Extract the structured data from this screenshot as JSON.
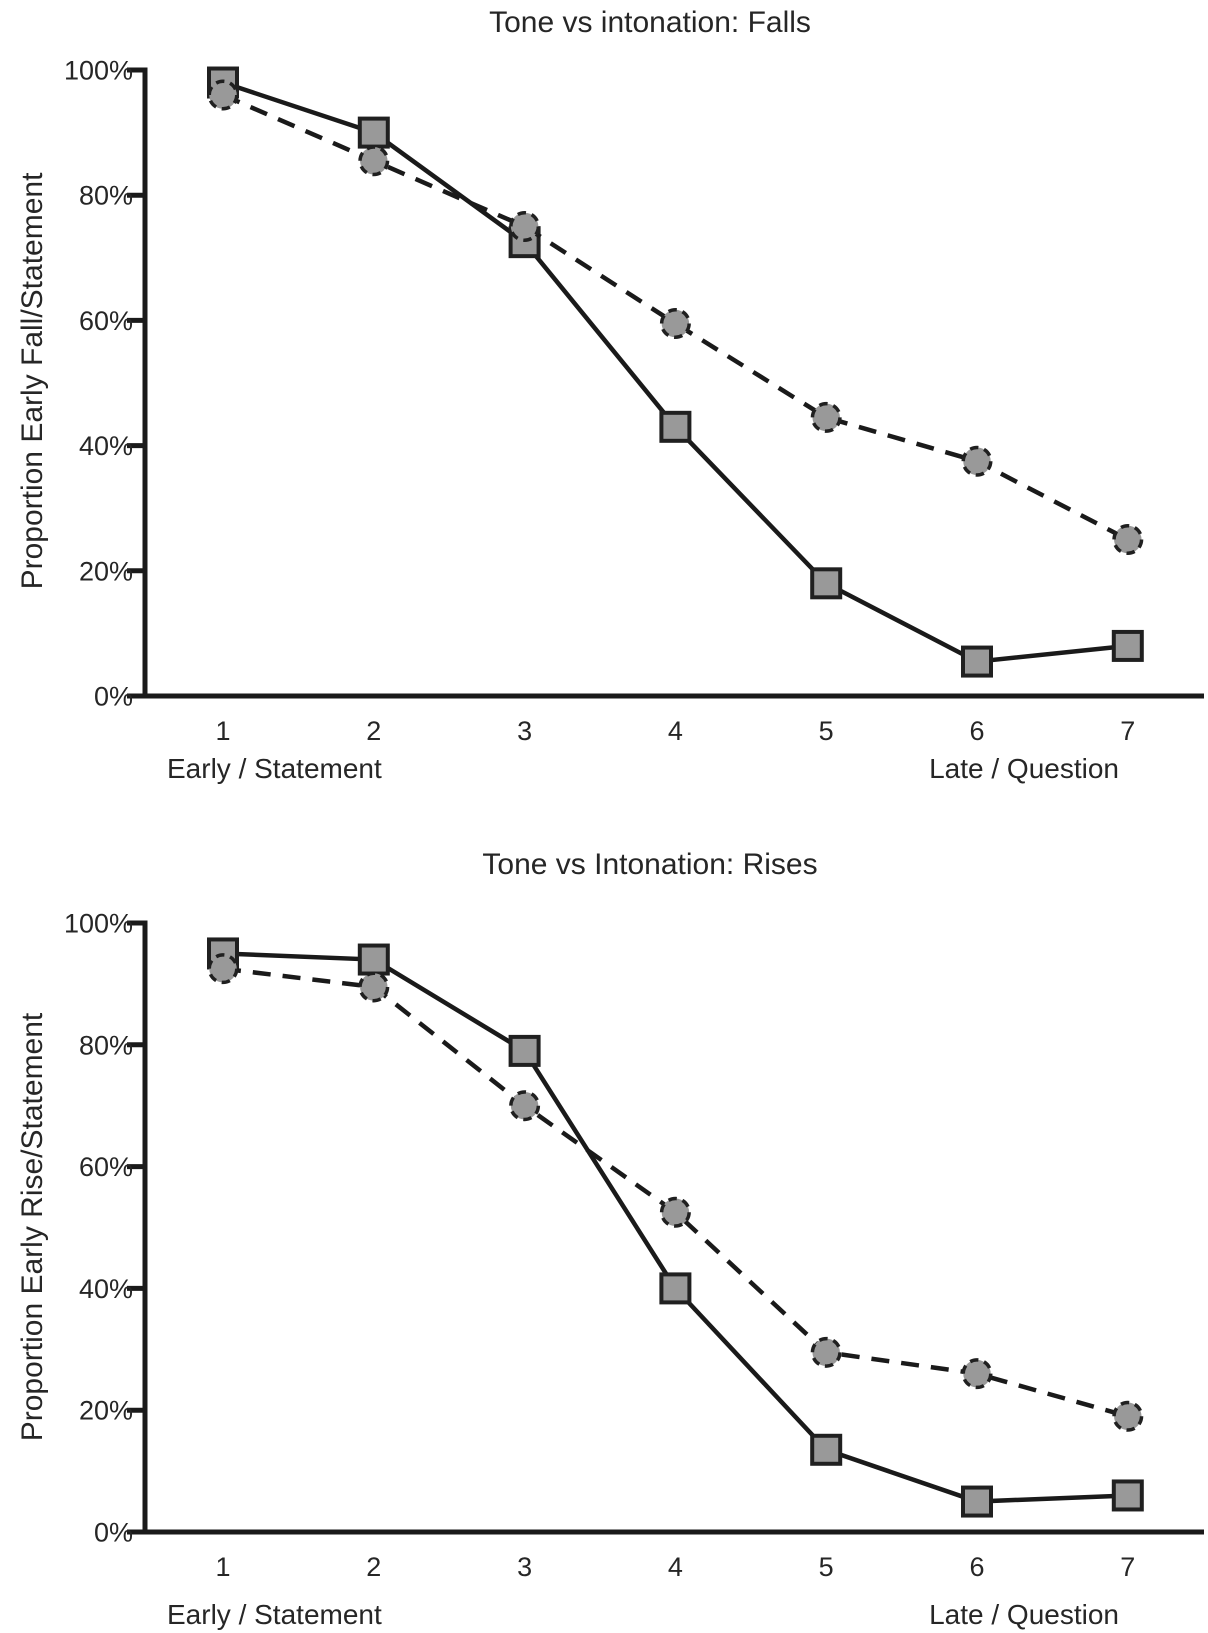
{
  "colors": {
    "axis": "#1a1a1a",
    "line": "#1a1a1a",
    "marker_fill": "#999999",
    "marker_stroke": "#202020",
    "text": "#262626"
  },
  "chart_data": [
    {
      "type": "line",
      "title": "Tone vs intonation: Falls",
      "ylabel": "Proportion Early Fall/Statement",
      "xlabel_left": "Early / Statement",
      "xlabel_right": "Late / Question",
      "x": [
        1,
        2,
        3,
        4,
        5,
        6,
        7
      ],
      "x_tick_labels": [
        "1",
        "2",
        "3",
        "4",
        "5",
        "6",
        "7"
      ],
      "y_tick_values": [
        0,
        20,
        40,
        60,
        80,
        100
      ],
      "y_tick_labels": [
        "0%",
        "20%",
        "40%",
        "60%",
        "80%",
        "100%"
      ],
      "ylim": [
        0,
        100
      ],
      "grid": false,
      "legend": "none",
      "series": [
        {
          "name": "solid-squares",
          "marker": "square",
          "line_style": "solid",
          "values": [
            98,
            90,
            72.5,
            43,
            18,
            5.5,
            8
          ]
        },
        {
          "name": "dashed-circles",
          "marker": "circle",
          "line_style": "dashed",
          "values": [
            96,
            85.5,
            75,
            59.5,
            44.5,
            37.5,
            25
          ]
        }
      ]
    },
    {
      "type": "line",
      "title": "Tone vs Intonation: Rises",
      "ylabel": "Proportion Early Rise/Statement",
      "xlabel_left": "Early / Statement",
      "xlabel_right": "Late / Question",
      "x": [
        1,
        2,
        3,
        4,
        5,
        6,
        7
      ],
      "x_tick_labels": [
        "1",
        "2",
        "3",
        "4",
        "5",
        "6",
        "7"
      ],
      "y_tick_values": [
        0,
        20,
        40,
        60,
        80,
        100
      ],
      "y_tick_labels": [
        "0%",
        "20%",
        "40%",
        "60%",
        "80%",
        "100%"
      ],
      "ylim": [
        0,
        100
      ],
      "grid": false,
      "legend": "none",
      "series": [
        {
          "name": "solid-squares",
          "marker": "square",
          "line_style": "solid",
          "values": [
            95,
            94,
            79,
            40,
            13.5,
            5,
            6
          ]
        },
        {
          "name": "dashed-circles",
          "marker": "circle",
          "line_style": "dashed",
          "values": [
            92.5,
            89.5,
            70,
            52.5,
            29.5,
            26,
            19
          ]
        }
      ]
    }
  ]
}
